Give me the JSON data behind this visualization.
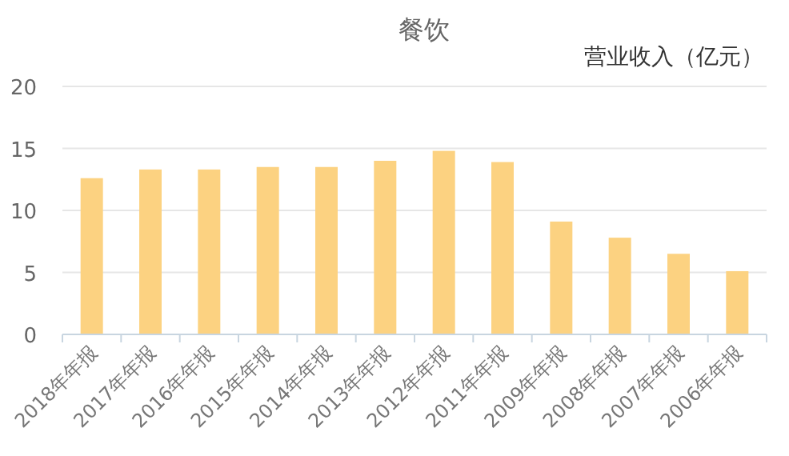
{
  "chart_data": {
    "type": "bar",
    "title": "餐饮",
    "ylabel": "营业收入（亿元）",
    "categories": [
      "2018年年报",
      "2017年年报",
      "2016年年报",
      "2015年年报",
      "2014年年报",
      "2013年年报",
      "2012年年报",
      "2011年年报",
      "2009年年报",
      "2008年年报",
      "2007年年报",
      "2006年年报"
    ],
    "values": [
      12.6,
      13.3,
      13.3,
      13.5,
      13.5,
      14.0,
      14.8,
      13.9,
      9.1,
      7.8,
      6.5,
      5.1
    ],
    "color": "#fcd281",
    "ylim": [
      0,
      20
    ],
    "yticks": [
      0,
      5,
      10,
      15,
      20
    ],
    "grid": "y"
  }
}
